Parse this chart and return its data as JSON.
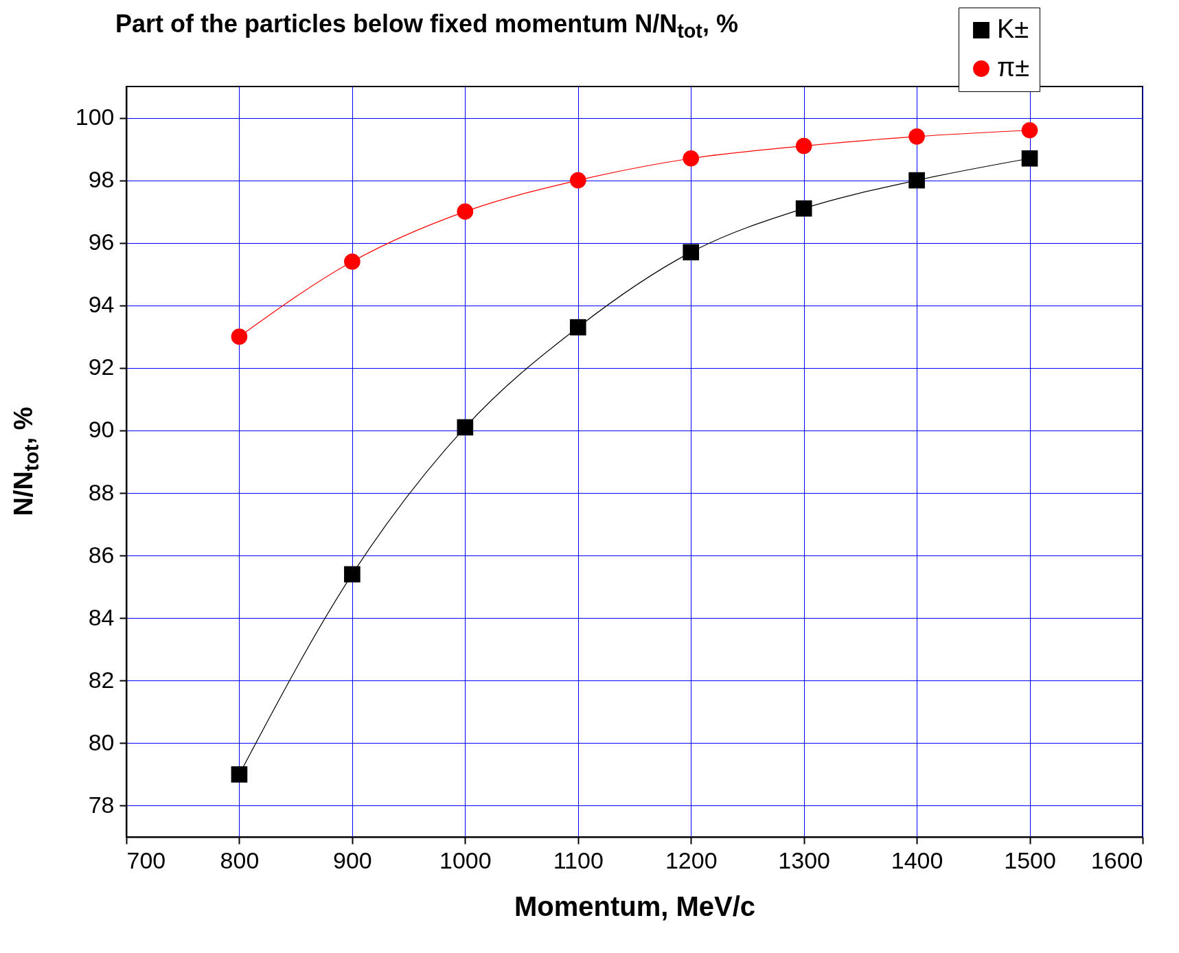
{
  "chart_data": {
    "type": "line",
    "title": "Part of the particles below fixed momentum N/N$_{tot}$, %",
    "xlabel": "Momentum, MeV/c",
    "ylabel": "N/N$_{tot}$, %",
    "x": [
      800,
      900,
      1000,
      1100,
      1200,
      1300,
      1400,
      1500
    ],
    "series": [
      {
        "name": "K±",
        "color": "#000000",
        "marker": "square",
        "values": [
          79.0,
          85.4,
          90.1,
          93.3,
          95.7,
          97.1,
          98.0,
          98.7
        ]
      },
      {
        "name": "π±",
        "color": "#ff0000",
        "marker": "circle",
        "values": [
          93.0,
          95.4,
          97.0,
          98.0,
          98.7,
          99.1,
          99.4,
          99.6
        ]
      }
    ],
    "xlim": [
      700,
      1600
    ],
    "xticks": [
      700,
      800,
      900,
      1000,
      1100,
      1200,
      1300,
      1400,
      1500,
      1600
    ],
    "ylim": [
      77,
      101
    ],
    "yticks": [
      78,
      80,
      82,
      84,
      86,
      88,
      90,
      92,
      94,
      96,
      98,
      100
    ],
    "grid": true,
    "legend": "top right",
    "line_style": "solid"
  }
}
